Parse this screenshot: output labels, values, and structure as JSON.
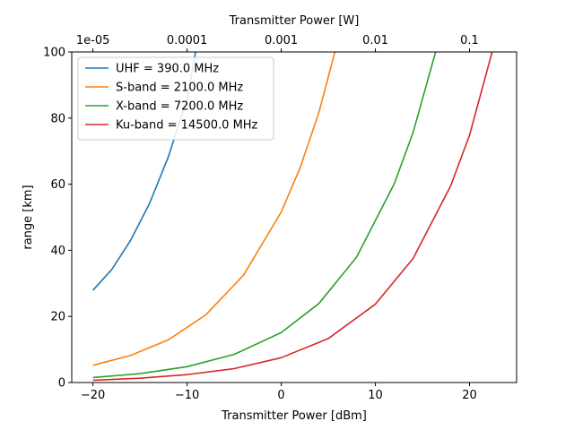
{
  "chart_data": {
    "type": "line",
    "title": "",
    "xlabel": "Transmitter Power [dBm]",
    "ylabel": "range [km]",
    "x2label": "Transmitter Power [W]",
    "xlim": [
      -22.25,
      25
    ],
    "ylim": [
      0,
      100
    ],
    "xticks": [
      -20,
      -10,
      0,
      10,
      20
    ],
    "yticks": [
      0,
      20,
      40,
      60,
      80,
      100
    ],
    "x2ticks": [
      {
        "value_dbm": -20,
        "label": "1e-05"
      },
      {
        "value_dbm": -10,
        "label": "0.0001"
      },
      {
        "value_dbm": 0,
        "label": "0.001"
      },
      {
        "value_dbm": 10,
        "label": "0.01"
      },
      {
        "value_dbm": 20,
        "label": "0.1"
      }
    ],
    "grid": false,
    "legend_position": "top-left",
    "series": [
      {
        "name": "UHF = 390.0 MHz",
        "color": "#1f77b4",
        "x": [
          -20,
          -18,
          -16,
          -14,
          -12,
          -10,
          -9.1
        ],
        "y": [
          27.9,
          34.2,
          43.0,
          54.1,
          68.2,
          85.8,
          100
        ]
      },
      {
        "name": "S-band = 2100.0 MHz",
        "color": "#ff7f0e",
        "x": [
          -20,
          -16,
          -12,
          -8,
          -4,
          0,
          2,
          4,
          5.7
        ],
        "y": [
          5.2,
          8.2,
          12.9,
          20.5,
          32.5,
          51.6,
          64.9,
          81.7,
          100
        ]
      },
      {
        "name": "X-band = 7200.0 MHz",
        "color": "#2ca02c",
        "x": [
          -20,
          -15,
          -10,
          -5,
          0,
          4,
          8,
          12,
          14,
          16.4
        ],
        "y": [
          1.5,
          2.7,
          4.8,
          8.5,
          15.1,
          23.9,
          37.9,
          60.1,
          75.6,
          100
        ]
      },
      {
        "name": "Ku-band = 14500.0 MHz",
        "color": "#d62728",
        "x": [
          -20,
          -15,
          -10,
          -5,
          0,
          5,
          10,
          14,
          18,
          20,
          22.4
        ],
        "y": [
          0.7,
          1.3,
          2.4,
          4.2,
          7.5,
          13.3,
          23.7,
          37.5,
          59.5,
          74.8,
          100
        ]
      }
    ]
  }
}
